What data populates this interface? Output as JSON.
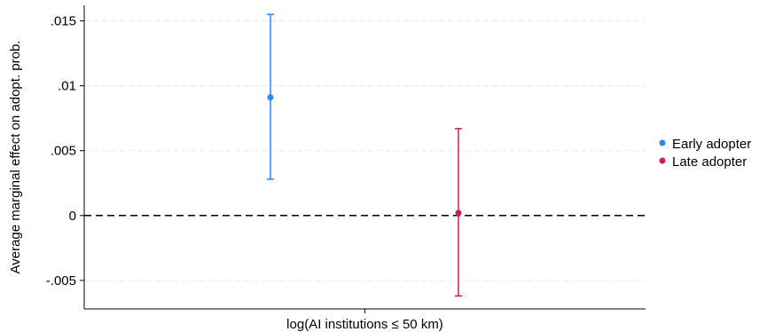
{
  "chart_data": {
    "type": "scatter",
    "subtype": "point-estimate-with-confidence-intervals",
    "title": "",
    "xlabel": "log(AI institutions ≤ 50 km)",
    "ylabel": "Average marginal effect on adopt. prob.",
    "ylim": [
      -0.0072,
      0.0162
    ],
    "yticks": [
      {
        "value": -0.005,
        "label": "-.005"
      },
      {
        "value": 0,
        "label": "0"
      },
      {
        "value": 0.005,
        "label": ".005"
      },
      {
        "value": 0.01,
        "label": ".01"
      },
      {
        "value": 0.015,
        "label": ".015"
      }
    ],
    "grid": true,
    "reference_line": {
      "y": 0,
      "style": "dashed"
    },
    "legend_position": "right",
    "series": [
      {
        "name": "Early adopter",
        "color": "#2b86e8",
        "estimate": 0.0091,
        "ci_low": 0.0028,
        "ci_high": 0.0155
      },
      {
        "name": "Late adopter",
        "color": "#cc1e58",
        "estimate": 0.0002,
        "ci_low": -0.0062,
        "ci_high": 0.0067
      }
    ]
  }
}
